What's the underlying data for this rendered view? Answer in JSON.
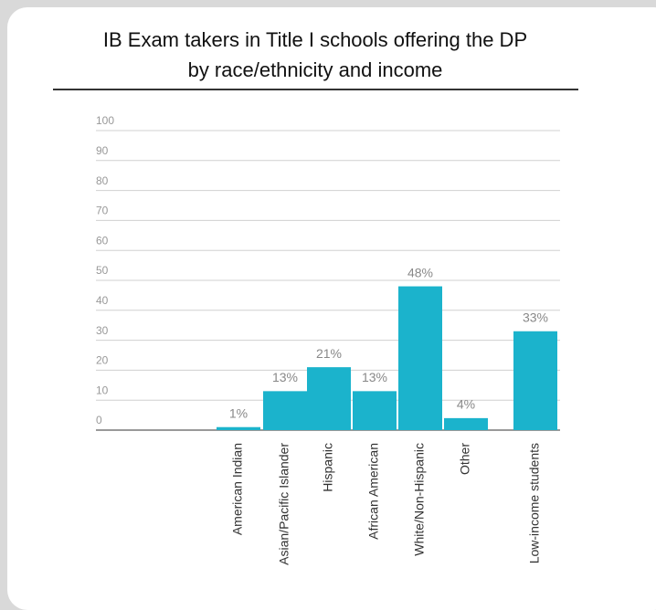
{
  "chart_data": {
    "type": "bar",
    "title": [
      "IB Exam takers in Title I schools offering the DP",
      "by race/ethnicity and income"
    ],
    "categories": [
      "American Indian",
      "Asian/Pacific Islander",
      "Hispanic",
      "African American",
      "White/Non-Hispanic",
      "Other",
      "Low-income students"
    ],
    "values": [
      1,
      13,
      21,
      13,
      48,
      4,
      33
    ],
    "value_labels": [
      "1%",
      "13%",
      "21%",
      "13%",
      "48%",
      "4%",
      "33%"
    ],
    "color": "#1bb3cc",
    "ylim": [
      0,
      100
    ],
    "yticks": [
      0,
      10,
      20,
      30,
      40,
      50,
      60,
      70,
      80,
      90,
      100
    ],
    "grid": true
  }
}
